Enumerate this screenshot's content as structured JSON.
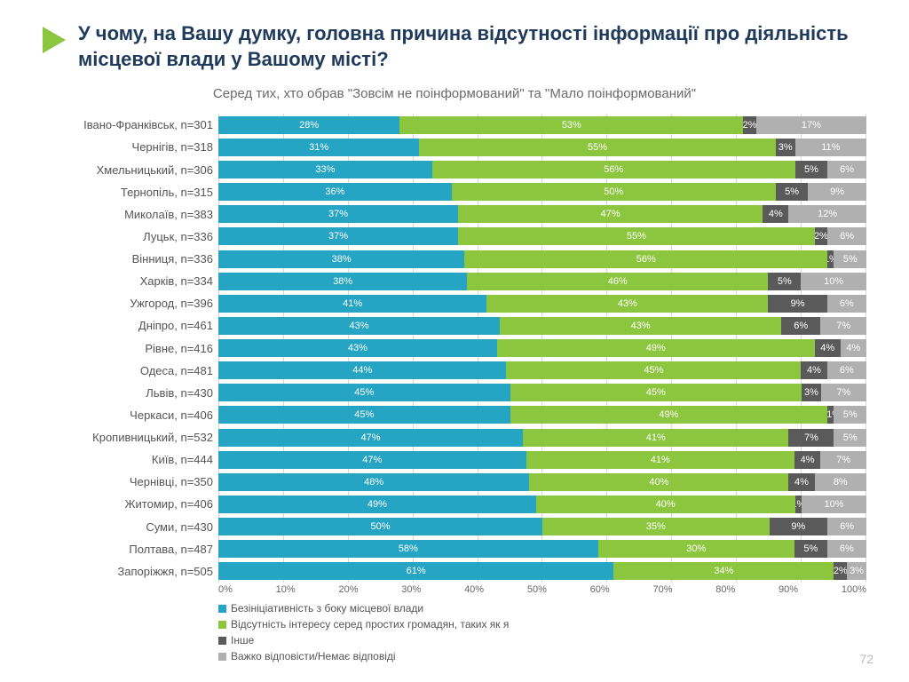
{
  "title": "У чому, на Вашу думку, головна причина відсутності інформації про діяльність місцевої влади у Вашому місті?",
  "subtitle": "Серед тих, хто обрав \"Зовсім не поінформований\" та \"Мало поінформований\"",
  "page_number": "72",
  "chart": {
    "type": "stacked-bar-100",
    "xlim": [
      0,
      100
    ],
    "xtick_step": 10,
    "xtick_labels": [
      "0%",
      "10%",
      "20%",
      "30%",
      "40%",
      "50%",
      "60%",
      "70%",
      "80%",
      "90%",
      "100%"
    ],
    "bg": "#ffffff",
    "grid_color": "#d8d8d8",
    "arrow_color": "#8cc63f",
    "series": [
      {
        "name": "Безініціативність з боку місцевої влади",
        "color": "#26a4c4"
      },
      {
        "name": "Відсутність інтересу серед простих громадян, таких як я",
        "color": "#8cc63f"
      },
      {
        "name": "Інше",
        "color": "#5a5a5a"
      },
      {
        "name": "Важко відповісти/Немає відповіді",
        "color": "#b0b0b0"
      }
    ],
    "rows": [
      {
        "label": "Івано-Франківськ, n=301",
        "v": [
          28,
          53,
          2,
          17
        ]
      },
      {
        "label": "Чернігів, n=318",
        "v": [
          31,
          55,
          3,
          11
        ]
      },
      {
        "label": "Хмельницький, n=306",
        "v": [
          33,
          56,
          5,
          6
        ]
      },
      {
        "label": "Тернопіль, n=315",
        "v": [
          36,
          50,
          5,
          9
        ]
      },
      {
        "label": "Миколаїв, n=383",
        "v": [
          37,
          47,
          4,
          12
        ]
      },
      {
        "label": "Луцьк, n=336",
        "v": [
          37,
          55,
          2,
          6
        ]
      },
      {
        "label": "Вінниця, n=336",
        "v": [
          38,
          56,
          1,
          5
        ]
      },
      {
        "label": "Харків, n=334",
        "v": [
          38,
          46,
          5,
          10
        ]
      },
      {
        "label": "Ужгород, n=396",
        "v": [
          41,
          43,
          9,
          6
        ]
      },
      {
        "label": "Дніпро, n=461",
        "v": [
          43,
          43,
          6,
          7
        ]
      },
      {
        "label": "Рівне, n=416",
        "v": [
          43,
          49,
          4,
          4
        ]
      },
      {
        "label": "Одеса, n=481",
        "v": [
          44,
          45,
          4,
          6
        ]
      },
      {
        "label": "Львів, n=430",
        "v": [
          45,
          45,
          3,
          7
        ]
      },
      {
        "label": "Черкаси, n=406",
        "v": [
          45,
          49,
          1,
          5
        ],
        "labels": [
          "45%",
          "49%",
          "<1%",
          "5%"
        ]
      },
      {
        "label": "Кропивницький, n=532",
        "v": [
          47,
          41,
          7,
          5
        ]
      },
      {
        "label": "Київ, n=444",
        "v": [
          47,
          41,
          4,
          7
        ]
      },
      {
        "label": "Чернівці, n=350",
        "v": [
          48,
          40,
          4,
          8
        ]
      },
      {
        "label": "Житомир, n=406",
        "v": [
          49,
          40,
          1,
          10
        ]
      },
      {
        "label": "Суми, n=430",
        "v": [
          50,
          35,
          9,
          6
        ]
      },
      {
        "label": "Полтава, n=487",
        "v": [
          58,
          30,
          5,
          6
        ]
      },
      {
        "label": "Запоріжжя, n=505",
        "v": [
          61,
          34,
          2,
          3
        ]
      }
    ]
  }
}
